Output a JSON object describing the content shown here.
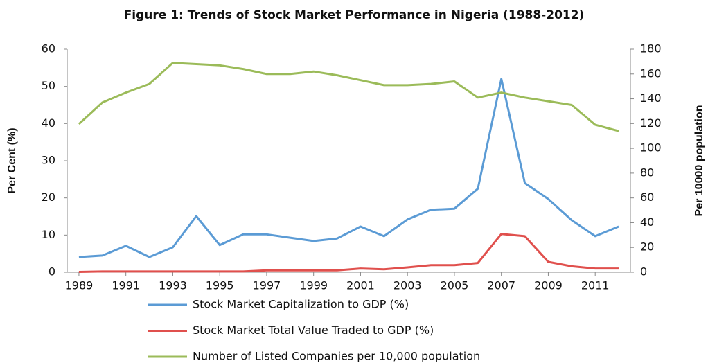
{
  "chart_data": {
    "type": "line",
    "title": "Figure 1: Trends of Stock Market Performance in Nigeria (1988-2012)",
    "y_label": "Per Cent (%)",
    "y2_label": "Per 10000 population",
    "x": [
      1989,
      1990,
      1991,
      1992,
      1993,
      1994,
      1995,
      1996,
      1997,
      1998,
      1999,
      2000,
      2001,
      2002,
      2003,
      2004,
      2005,
      2006,
      2007,
      2008,
      2009,
      2010,
      2011,
      2012
    ],
    "xlim": [
      1988.5,
      2012.5
    ],
    "xticks": [
      1989,
      1991,
      1993,
      1995,
      1997,
      1999,
      2001,
      2003,
      2005,
      2007,
      2009,
      2011
    ],
    "ylim": [
      0,
      60
    ],
    "yticks": [
      0,
      10,
      20,
      30,
      40,
      50,
      60
    ],
    "y2lim": [
      0,
      180
    ],
    "y2ticks": [
      0,
      20,
      40,
      60,
      80,
      100,
      120,
      140,
      160,
      180
    ],
    "legend": "bottom",
    "series": [
      {
        "name": "Stock Market Capitalization to GDP (%)",
        "color": "#5b9bd5",
        "values": [
          4.1,
          4.5,
          7.1,
          4.1,
          6.7,
          15.1,
          7.3,
          10.2,
          10.2,
          9.3,
          8.4,
          9.1,
          12.3,
          9.7,
          14.2,
          16.8,
          17.1,
          22.5,
          52,
          24,
          19.7,
          14,
          9.7,
          12.3
        ]
      },
      {
        "name": "Stock Market Total Value Traded to GDP (%)",
        "color": "#e0504d",
        "values": [
          0.1,
          0.2,
          0.2,
          0.2,
          0.2,
          0.2,
          0.2,
          0.2,
          0.5,
          0.5,
          0.5,
          0.5,
          1.0,
          0.8,
          1.3,
          1.9,
          1.9,
          2.5,
          10.3,
          9.7,
          2.8,
          1.6,
          1.0,
          1.0
        ]
      },
      {
        "name": "Number of Listed Companies per 10,000 population",
        "color": "#9bbb59",
        "axis": "y2",
        "values": [
          119.6,
          137,
          145,
          152,
          169,
          168,
          167,
          164,
          160,
          160,
          162,
          159,
          155,
          151,
          151,
          152,
          154,
          141,
          145,
          141,
          138,
          135,
          119,
          114
        ]
      }
    ]
  }
}
